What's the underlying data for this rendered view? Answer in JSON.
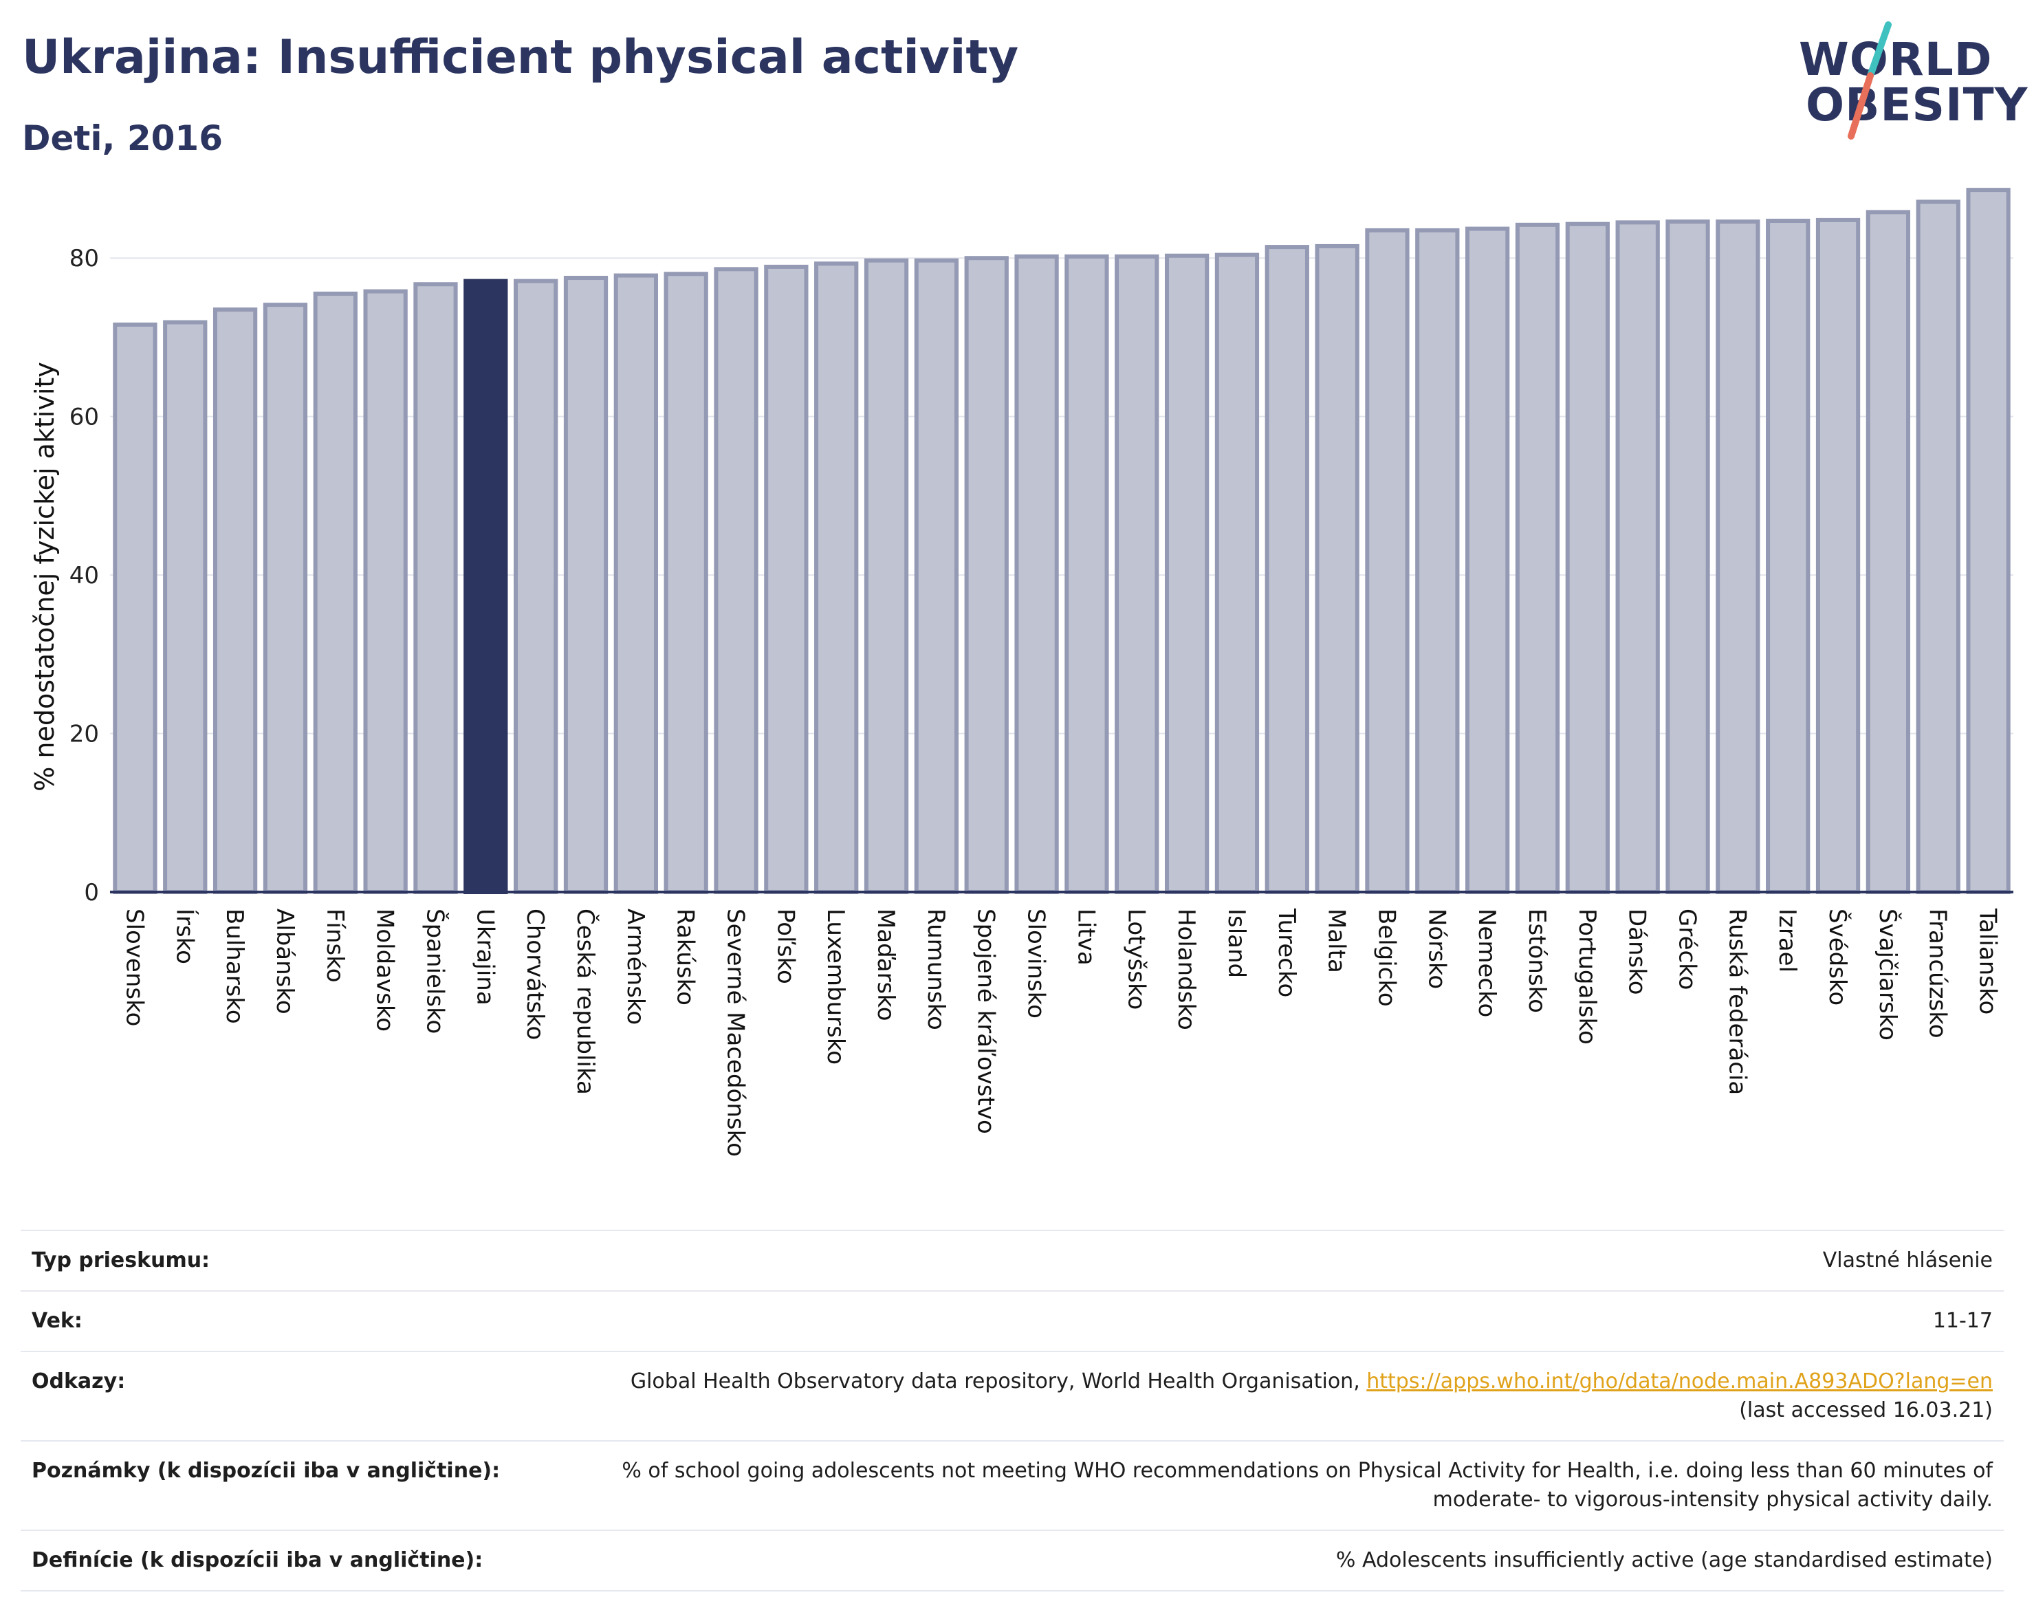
{
  "header": {
    "title": "Ukrajina: Insufficient physical activity",
    "subtitle": "Deti, 2016"
  },
  "logo": {
    "line1": "WORLD",
    "line2": "OBESITY"
  },
  "colors": {
    "highlight": "#2c3560",
    "bar": "#c0c4d2",
    "bar_border": "#9499b4",
    "title": "#2c3560",
    "link": "#e0a21a",
    "logo_slash_top": "#3fc1c0",
    "logo_slash_bottom": "#e8705a"
  },
  "chart_data": {
    "type": "bar",
    "ylabel": "% nedostatočnej fyzickej aktivity",
    "ylim": [
      0,
      90
    ],
    "yticks": [
      0,
      20,
      40,
      60,
      80
    ],
    "grid": true,
    "highlight": "Ukrajina",
    "categories": [
      "Slovensko",
      "Írsko",
      "Bulharsko",
      "Albánsko",
      "Fínsko",
      "Moldavsko",
      "Španielsko",
      "Ukrajina",
      "Chorvátsko",
      "Česká republika",
      "Arménsko",
      "Rakúsko",
      "Severné Macedónsko",
      "Poľsko",
      "Luxembursko",
      "Maďarsko",
      "Rumunsko",
      "Spojené kráľovstvo",
      "Slovinsko",
      "Litva",
      "Lotyšsko",
      "Holandsko",
      "Island",
      "Turecko",
      "Malta",
      "Belgicko",
      "Nórsko",
      "Nemecko",
      "Estónsko",
      "Portugalsko",
      "Dánsko",
      "Grécko",
      "Ruská federácia",
      "Izrael",
      "Švédsko",
      "Švajčiarsko",
      "Francúzsko",
      "Taliansko"
    ],
    "values": [
      71.6,
      71.9,
      73.5,
      74.1,
      75.5,
      75.8,
      76.7,
      77.1,
      77.1,
      77.5,
      77.8,
      78.0,
      78.6,
      78.9,
      79.3,
      79.7,
      79.7,
      80.0,
      80.2,
      80.2,
      80.2,
      80.3,
      80.4,
      81.4,
      81.5,
      83.5,
      83.5,
      83.7,
      84.2,
      84.3,
      84.5,
      84.6,
      84.6,
      84.7,
      84.8,
      85.8,
      87.1,
      88.6
    ]
  },
  "meta": [
    {
      "key": "Typ prieskumu:",
      "value": "Vlastné hlásenie"
    },
    {
      "key": "Vek:",
      "value": "11-17"
    },
    {
      "key": "Odkazy:",
      "value": "Global Health Observatory data repository, World Health Organisation, ",
      "link": "https://apps.who.int/gho/data/node.main.A893ADO?lang=en",
      "note": "(last accessed 16.03.21)"
    },
    {
      "key": "Poznámky (k dispozícii iba v angličtine):",
      "value": "% of school going adolescents not meeting WHO recommendations on Physical Activity for Health, i.e. doing less than 60 minutes of moderate- to vigorous-intensity physical activity daily."
    },
    {
      "key": "Definície (k dispozícii iba v angličtine):",
      "value": "% Adolescents insufficiently active (age standardised estimate)"
    }
  ]
}
